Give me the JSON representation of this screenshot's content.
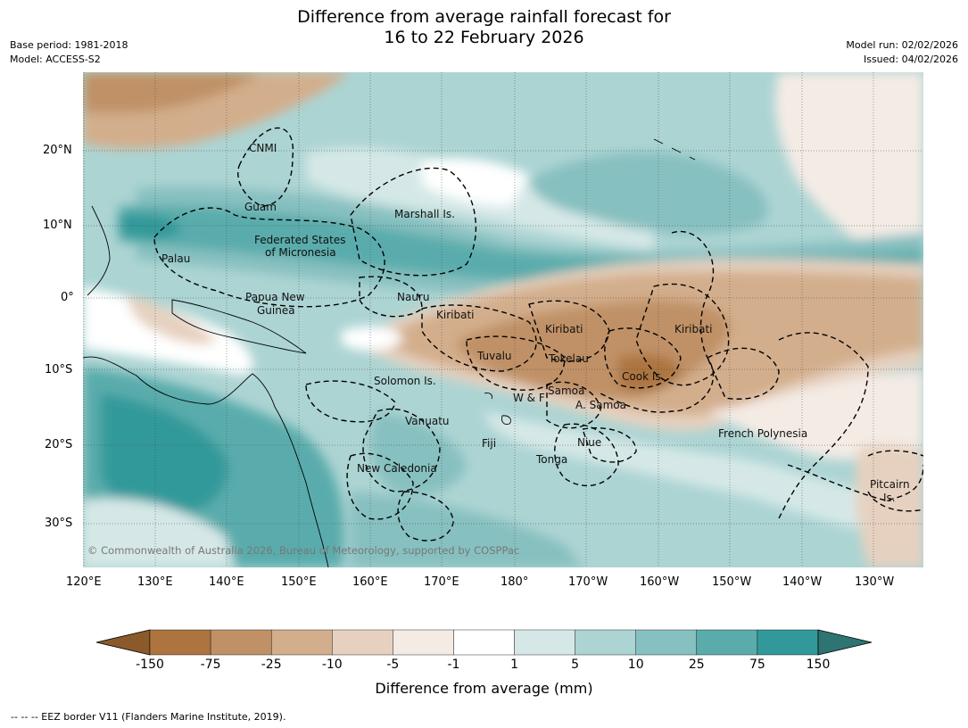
{
  "header": {
    "title_line1": "Difference from average rainfall forecast for",
    "title_line2": "16 to 22 February 2026",
    "base_period": "Base period: 1981-2018",
    "model": "Model: ACCESS-S2",
    "model_run": "Model run: 02/02/2026",
    "issued": "Issued: 04/02/2026"
  },
  "map": {
    "lat_labels": [
      "20°N",
      "10°N",
      "0°",
      "10°S",
      "20°S",
      "30°S"
    ],
    "lon_labels": [
      "120°E",
      "130°E",
      "140°E",
      "150°E",
      "160°E",
      "170°E",
      "180°",
      "170°W",
      "160°W",
      "150°W",
      "140°W",
      "130°W"
    ],
    "places": {
      "cnmi": "CNMI",
      "guam": "Guam",
      "marshall": "Marshall Is.",
      "fsm1": "Federated States",
      "fsm2": "of Micronesia",
      "palau": "Palau",
      "png1": "Papua New",
      "png2": "Guinea",
      "nauru": "Nauru",
      "kiribati_w": "Kiribati",
      "kiribati_c": "Kiribati",
      "kiribati_e": "Kiribati",
      "tuvalu": "Tuvalu",
      "tokelau": "Tokelau",
      "cook": "Cook Is.",
      "solomon": "Solomon Is.",
      "wf": "W & F",
      "samoa": "Samoa",
      "asamoa": "A. Samoa",
      "vanuatu": "Vanuatu",
      "fiji": "Fiji",
      "niue": "Niue",
      "tonga": "Tonga",
      "fp": "French Polynesia",
      "newcal": "New Caledonia",
      "pitcairn1": "Pitcairn",
      "pitcairn2": "Is."
    },
    "copyright": "© Commonwealth of Australia 2026, Bureau of Meteorology, supported by COSPPac"
  },
  "colorbar": {
    "labels": [
      "-150",
      "-75",
      "-25",
      "-10",
      "-5",
      "-1",
      "1",
      "5",
      "10",
      "25",
      "75",
      "150"
    ],
    "colors": [
      "#8b5a2b",
      "#ad7440",
      "#c09166",
      "#d3ae8c",
      "#e6d1c0",
      "#f4ebe5",
      "#ffffff",
      "#d5e8e7",
      "#acd4d3",
      "#87c0c0",
      "#5aacac",
      "#32999a",
      "#2e7473"
    ],
    "title": "Difference from average (mm)"
  },
  "footnote": "--  --  -- EEZ border V11 (Flanders Marine Institute, 2019)."
}
